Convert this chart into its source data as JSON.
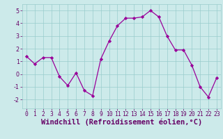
{
  "x": [
    0,
    1,
    2,
    3,
    4,
    5,
    6,
    7,
    8,
    9,
    10,
    11,
    12,
    13,
    14,
    15,
    16,
    17,
    18,
    19,
    20,
    21,
    22,
    23
  ],
  "y": [
    1.4,
    0.8,
    1.3,
    1.3,
    -0.2,
    -0.9,
    0.1,
    -1.3,
    -1.7,
    1.2,
    2.6,
    3.8,
    4.4,
    4.4,
    4.5,
    5.0,
    4.5,
    3.0,
    1.9,
    1.9,
    0.7,
    -1.0,
    -1.8,
    -0.3
  ],
  "line_color": "#990099",
  "marker": "D",
  "marker_size": 2.2,
  "background_color": "#cceaea",
  "grid_color": "#99cccc",
  "xlabel": "Windchill (Refroidissement éolien,°C)",
  "xlabel_fontsize": 7.5,
  "xlabel_color": "#660066",
  "tick_color": "#660066",
  "xlim": [
    -0.5,
    23.5
  ],
  "ylim": [
    -2.7,
    5.5
  ],
  "yticks": [
    -2,
    -1,
    0,
    1,
    2,
    3,
    4,
    5
  ],
  "xticks": [
    0,
    1,
    2,
    3,
    4,
    5,
    6,
    7,
    8,
    9,
    10,
    11,
    12,
    13,
    14,
    15,
    16,
    17,
    18,
    19,
    20,
    21,
    22,
    23
  ],
  "tick_fontsize": 5.8,
  "linewidth": 0.9
}
